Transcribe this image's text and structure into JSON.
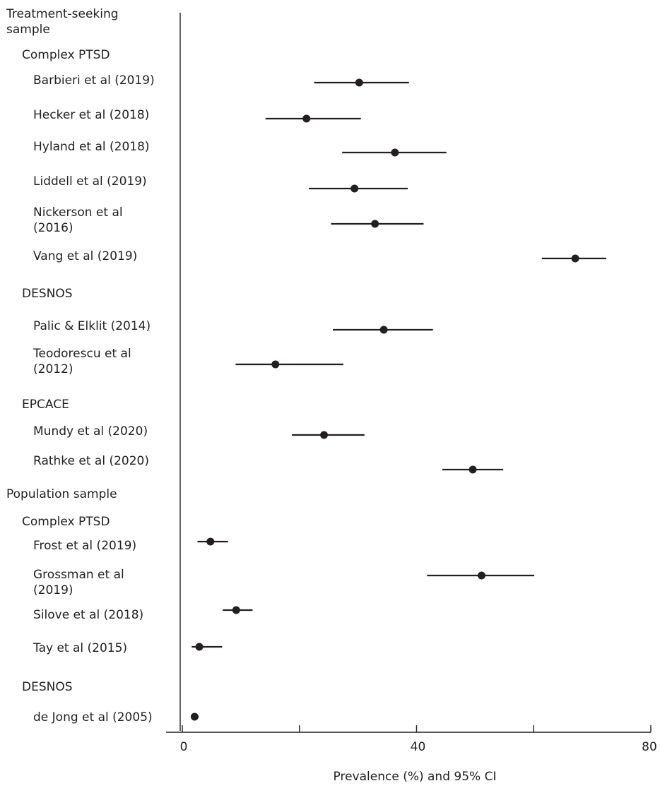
{
  "chart_data": {
    "type": "forest",
    "xlabel": "Prevalence (%) and 95% CI",
    "xlim": [
      0,
      80
    ],
    "xticks": [
      0,
      20,
      40,
      60,
      80
    ],
    "xtick_labels": [
      "0",
      "",
      "40",
      "",
      "80"
    ],
    "grid": false,
    "groups": [
      {
        "sample": "Treatment-seeking\nsample",
        "subgroups": [
          {
            "name": "Complex PTSD",
            "studies": [
              {
                "label": "Barbieri et al (2019)",
                "estimate": 30.2,
                "ci_low": 22.5,
                "ci_high": 38.7
              },
              {
                "label": "Hecker et al (2018)",
                "estimate": 21.2,
                "ci_low": 14.2,
                "ci_high": 30.5
              },
              {
                "label": "Hyland et al (2018)",
                "estimate": 36.3,
                "ci_low": 27.3,
                "ci_high": 45.1
              },
              {
                "label": "Liddell et al (2019)",
                "estimate": 29.4,
                "ci_low": 21.6,
                "ci_high": 38.5
              },
              {
                "label": "Nickerson et al\n(2016)",
                "estimate": 32.9,
                "ci_low": 25.4,
                "ci_high": 41.2
              },
              {
                "label": "Vang et al (2019)",
                "estimate": 67.1,
                "ci_low": 61.4,
                "ci_high": 72.4
              }
            ]
          },
          {
            "name": "DESNOS",
            "studies": [
              {
                "label": "Palic & Elklit (2014)",
                "estimate": 34.4,
                "ci_low": 25.7,
                "ci_high": 42.8
              },
              {
                "label": "Teodorescu et al\n(2012)",
                "estimate": 15.9,
                "ci_low": 9.1,
                "ci_high": 27.5
              }
            ]
          },
          {
            "name": "EPCACE",
            "studies": [
              {
                "label": "Mundy et al (2020)",
                "estimate": 24.2,
                "ci_low": 18.7,
                "ci_high": 31.1
              },
              {
                "label": "Rathke et al (2020)",
                "estimate": 49.6,
                "ci_low": 44.4,
                "ci_high": 54.8
              }
            ]
          }
        ]
      },
      {
        "sample": "Population sample",
        "subgroups": [
          {
            "name": "Complex PTSD",
            "studies": [
              {
                "label": "Frost et al (2019)",
                "estimate": 4.8,
                "ci_low": 2.6,
                "ci_high": 7.8
              },
              {
                "label": "Grossman et al\n(2019)",
                "estimate": 51.1,
                "ci_low": 41.8,
                "ci_high": 60.1
              },
              {
                "label": "Silove et al (2018)",
                "estimate": 9.2,
                "ci_low": 6.9,
                "ci_high": 12.0
              },
              {
                "label": "Tay et al (2015)",
                "estimate": 2.9,
                "ci_low": 1.6,
                "ci_high": 6.8
              }
            ]
          },
          {
            "name": "DESNOS",
            "studies": [
              {
                "label": "de Jong et al (2005)",
                "estimate": 2.1,
                "ci_low": 1.5,
                "ci_high": 2.8
              }
            ]
          }
        ]
      }
    ]
  }
}
